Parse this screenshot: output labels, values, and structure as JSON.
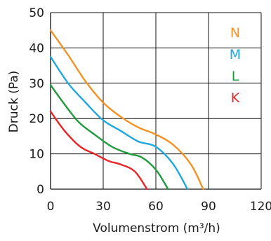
{
  "chart_data": {
    "type": "line",
    "title": "",
    "xlabel": "Volumenstrom (m³/h)",
    "ylabel": "Druck (Pa)",
    "xlim": [
      0,
      120
    ],
    "ylim": [
      0,
      50
    ],
    "x_ticks": [
      0,
      30,
      60,
      90,
      120
    ],
    "y_ticks": [
      0,
      10,
      20,
      30,
      40,
      50
    ],
    "grid": true,
    "legend_position": "top-right",
    "series": [
      {
        "name": "N",
        "color": "#f39224",
        "points": [
          [
            0,
            45
          ],
          [
            10,
            38
          ],
          [
            20,
            30.5
          ],
          [
            30,
            24.5
          ],
          [
            40,
            20.5
          ],
          [
            50,
            17.5
          ],
          [
            60,
            15.5
          ],
          [
            70,
            12.5
          ],
          [
            80,
            7
          ],
          [
            87,
            0
          ]
        ]
      },
      {
        "name": "M",
        "color": "#1fa8e0",
        "points": [
          [
            0,
            37.5
          ],
          [
            10,
            30
          ],
          [
            20,
            24.5
          ],
          [
            30,
            19.5
          ],
          [
            40,
            16.5
          ],
          [
            50,
            13.5
          ],
          [
            60,
            12
          ],
          [
            70,
            7
          ],
          [
            78,
            0
          ]
        ]
      },
      {
        "name": "L",
        "color": "#1f9a3c",
        "points": [
          [
            0,
            29.5
          ],
          [
            8,
            24
          ],
          [
            16,
            19
          ],
          [
            25,
            15.5
          ],
          [
            35,
            12
          ],
          [
            45,
            10
          ],
          [
            52,
            9
          ],
          [
            60,
            5.5
          ],
          [
            67,
            0
          ]
        ]
      },
      {
        "name": "K",
        "color": "#e8262a",
        "points": [
          [
            0,
            22
          ],
          [
            8,
            16.5
          ],
          [
            17,
            12
          ],
          [
            25,
            10
          ],
          [
            33,
            8
          ],
          [
            40,
            7
          ],
          [
            48,
            5
          ],
          [
            55,
            0
          ]
        ]
      }
    ]
  }
}
